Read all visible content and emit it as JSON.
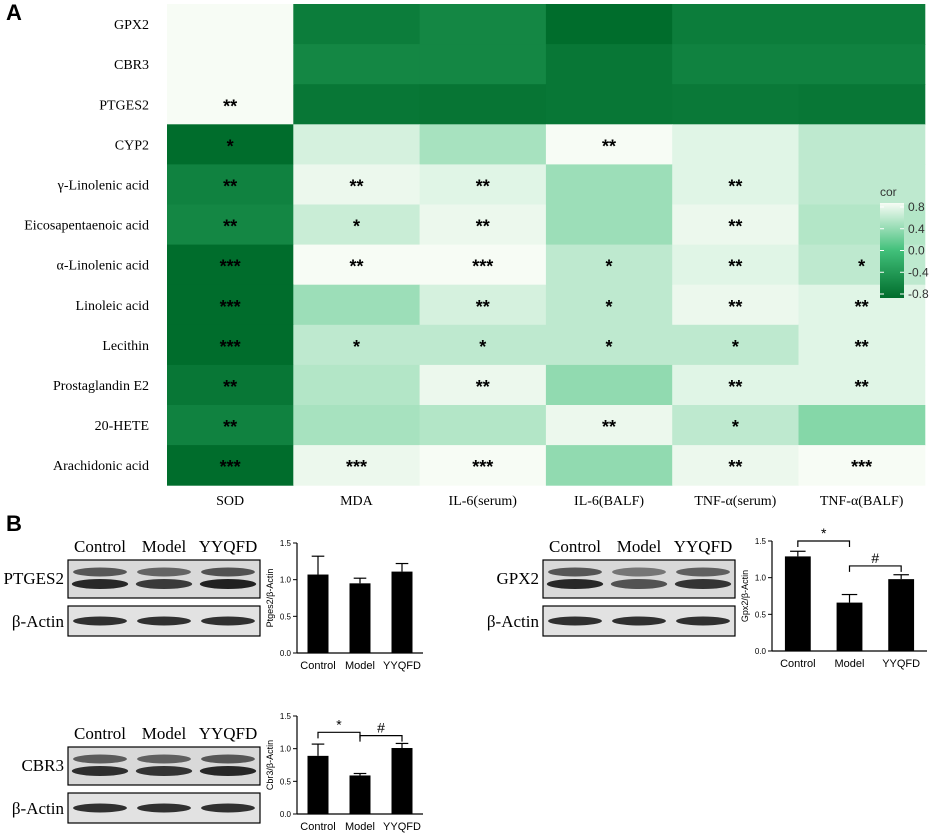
{
  "panel_a_label": "A",
  "panel_b_label": "B",
  "chart_data": [
    {
      "type": "heatmap",
      "rows": [
        "GPX2",
        "CBR3",
        "PTGES2",
        "CYP2",
        "γ-Linolenic acid",
        "Eicosapentaenoic acid",
        "α-Linolenic acid",
        "Linoleic acid",
        "Lecithin",
        "Prostaglandin E2",
        "20-HETE",
        "Arachidonic acid"
      ],
      "columns": [
        "SOD",
        "MDA",
        "IL-6(serum)",
        "IL-6(BALF)",
        "TNF-α(serum)",
        "TNF-α(BALF)"
      ],
      "values": [
        [
          0.85,
          -0.65,
          -0.55,
          -0.8,
          -0.65,
          -0.65
        ],
        [
          0.85,
          -0.55,
          -0.55,
          -0.7,
          -0.6,
          -0.6
        ],
        [
          0.95,
          -0.7,
          -0.72,
          -0.7,
          -0.68,
          -0.7
        ],
        [
          -0.8,
          0.65,
          0.45,
          0.95,
          0.7,
          0.55
        ],
        [
          -0.6,
          0.75,
          0.7,
          0.4,
          0.7,
          0.55
        ],
        [
          -0.55,
          0.6,
          0.75,
          0.4,
          0.75,
          0.5
        ],
        [
          -0.8,
          0.8,
          0.85,
          0.55,
          0.7,
          0.55
        ],
        [
          -0.8,
          0.4,
          0.65,
          0.55,
          0.75,
          0.7
        ],
        [
          -0.8,
          0.55,
          0.55,
          0.55,
          0.55,
          0.7
        ],
        [
          -0.7,
          0.5,
          0.75,
          0.35,
          0.7,
          0.7
        ],
        [
          -0.6,
          0.45,
          0.5,
          0.75,
          0.55,
          0.3
        ],
        [
          -0.85,
          0.75,
          0.8,
          0.35,
          0.75,
          0.8
        ]
      ],
      "annotations": [
        [
          "",
          "",
          "",
          "",
          "",
          ""
        ],
        [
          "",
          "",
          "",
          "",
          "",
          ""
        ],
        [
          "**",
          "",
          "",
          "",
          "",
          ""
        ],
        [
          "*",
          "",
          "",
          "**",
          "",
          ""
        ],
        [
          "**",
          "**",
          "**",
          "",
          "**",
          ""
        ],
        [
          "**",
          "*",
          "**",
          "",
          "**",
          ""
        ],
        [
          "***",
          "**",
          "***",
          "*",
          "**",
          "*"
        ],
        [
          "***",
          "",
          "**",
          "*",
          "**",
          "**"
        ],
        [
          "***",
          "*",
          "*",
          "*",
          "*",
          "**"
        ],
        [
          "**",
          "",
          "**",
          "",
          "**",
          "**"
        ],
        [
          "**",
          "",
          "",
          "**",
          "*",
          ""
        ],
        [
          "***",
          "***",
          "***",
          "",
          "**",
          "***"
        ]
      ],
      "legend": {
        "title": "cor",
        "ticks": [
          "0.8",
          "0.4",
          "0.0",
          "-0.4",
          "-0.8"
        ],
        "range": [
          -0.8,
          0.8
        ]
      },
      "colors": {
        "low": "#006d2c",
        "mid": "#41c07a",
        "high": "#f7fcf5"
      }
    },
    {
      "type": "bar",
      "ylabel": "Ptges2/β-Actin",
      "categories": [
        "Control",
        "Model",
        "YYQFD"
      ],
      "values": [
        1.07,
        0.95,
        1.11
      ],
      "errors": [
        0.25,
        0.07,
        0.11
      ],
      "ylim": [
        0,
        1.5
      ],
      "yticks": [
        "0.0",
        "0.5",
        "1.0",
        "1.5"
      ],
      "significance": []
    },
    {
      "type": "bar",
      "ylabel": "Gpx2/β-Actin",
      "categories": [
        "Control",
        "Model",
        "YYQFD"
      ],
      "values": [
        1.29,
        0.66,
        0.98
      ],
      "errors": [
        0.07,
        0.11,
        0.06
      ],
      "ylim": [
        0,
        1.5
      ],
      "yticks": [
        "0.0",
        "0.5",
        "1.0",
        "1.5"
      ],
      "significance": [
        {
          "from": 0,
          "to": 1,
          "label": "*"
        },
        {
          "from": 1,
          "to": 2,
          "label": "#"
        }
      ]
    },
    {
      "type": "bar",
      "ylabel": "Cbr3/β-Actin",
      "categories": [
        "Control",
        "Model",
        "YYQFD"
      ],
      "values": [
        0.89,
        0.59,
        1.01
      ],
      "errors": [
        0.18,
        0.03,
        0.07
      ],
      "ylim": [
        0,
        1.5
      ],
      "yticks": [
        "0.0",
        "0.5",
        "1.0",
        "1.5"
      ],
      "significance": [
        {
          "from": 0,
          "to": 1,
          "label": "*"
        },
        {
          "from": 1,
          "to": 2,
          "label": "#"
        }
      ]
    }
  ],
  "blots": [
    {
      "lanes": [
        "Control",
        "Model",
        "YYQFD"
      ],
      "protein": "PTGES2",
      "loading": "β-Actin",
      "band_intensity": [
        0.9,
        0.75,
        0.95
      ]
    },
    {
      "lanes": [
        "Control",
        "Model",
        "YYQFD"
      ],
      "protein": "GPX2",
      "loading": "β-Actin",
      "band_intensity": [
        0.9,
        0.55,
        0.8
      ]
    },
    {
      "lanes": [
        "Control",
        "Model",
        "YYQFD"
      ],
      "protein": "CBR3",
      "loading": "β-Actin",
      "band_intensity": [
        0.85,
        0.8,
        0.9
      ]
    }
  ]
}
